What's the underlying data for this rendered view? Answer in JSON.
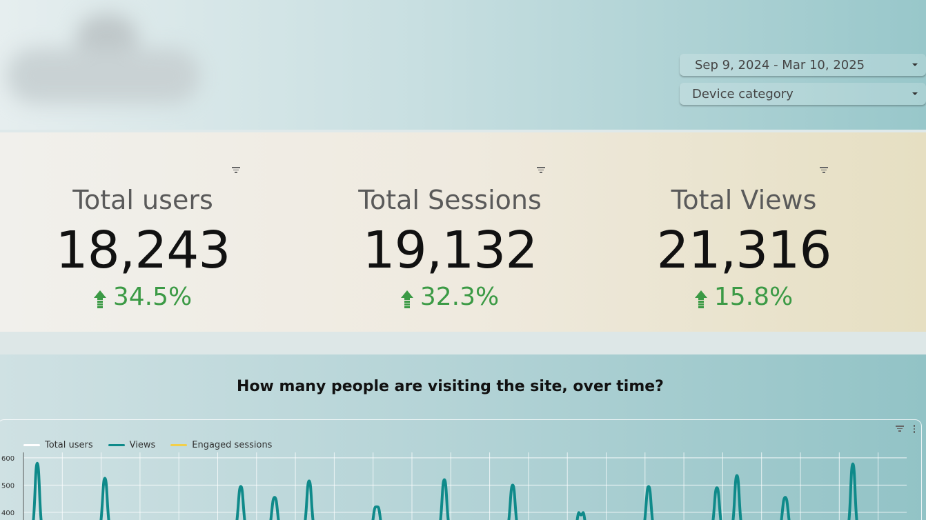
{
  "header": {
    "date_range": "Sep 9, 2024 - Mar 10, 2025",
    "device_filter": "Device category"
  },
  "kpis": [
    {
      "title": "Total users",
      "value": "18,243",
      "delta": "34.5%",
      "trend": "up"
    },
    {
      "title": "Total Sessions",
      "value": "19,132",
      "delta": "32.3%",
      "trend": "up"
    },
    {
      "title": "Total Views",
      "value": "21,316",
      "delta": "15.8%",
      "trend": "up"
    }
  ],
  "colors": {
    "positive": "#3b9a45",
    "views": "#0f8a8a",
    "total_users": "#ffffff",
    "engaged_sessions": "#f2cf4a"
  },
  "chart_data": {
    "type": "line",
    "title": "How many people are visiting the site, over time?",
    "legend_position": "top-left",
    "grid": true,
    "y_ticks": [
      600,
      500,
      400
    ],
    "ylim": [
      300,
      620
    ],
    "series": [
      {
        "name": "Total users",
        "color": "#ffffff",
        "peaks": []
      },
      {
        "name": "Views",
        "color": "#0f8a8a",
        "peaks": [
          [
            0.054,
            580
          ],
          [
            0.152,
            525
          ],
          [
            0.349,
            495
          ],
          [
            0.398,
            455
          ],
          [
            0.448,
            515
          ],
          [
            0.546,
            420
          ],
          [
            0.644,
            520
          ],
          [
            0.743,
            500
          ],
          [
            0.842,
            390
          ],
          [
            0.94,
            495
          ],
          [
            1.039,
            490
          ],
          [
            1.068,
            535
          ],
          [
            1.138,
            455
          ],
          [
            1.236,
            578
          ]
        ]
      },
      {
        "name": "Engaged sessions",
        "color": "#f2cf4a",
        "peaks": []
      }
    ]
  }
}
